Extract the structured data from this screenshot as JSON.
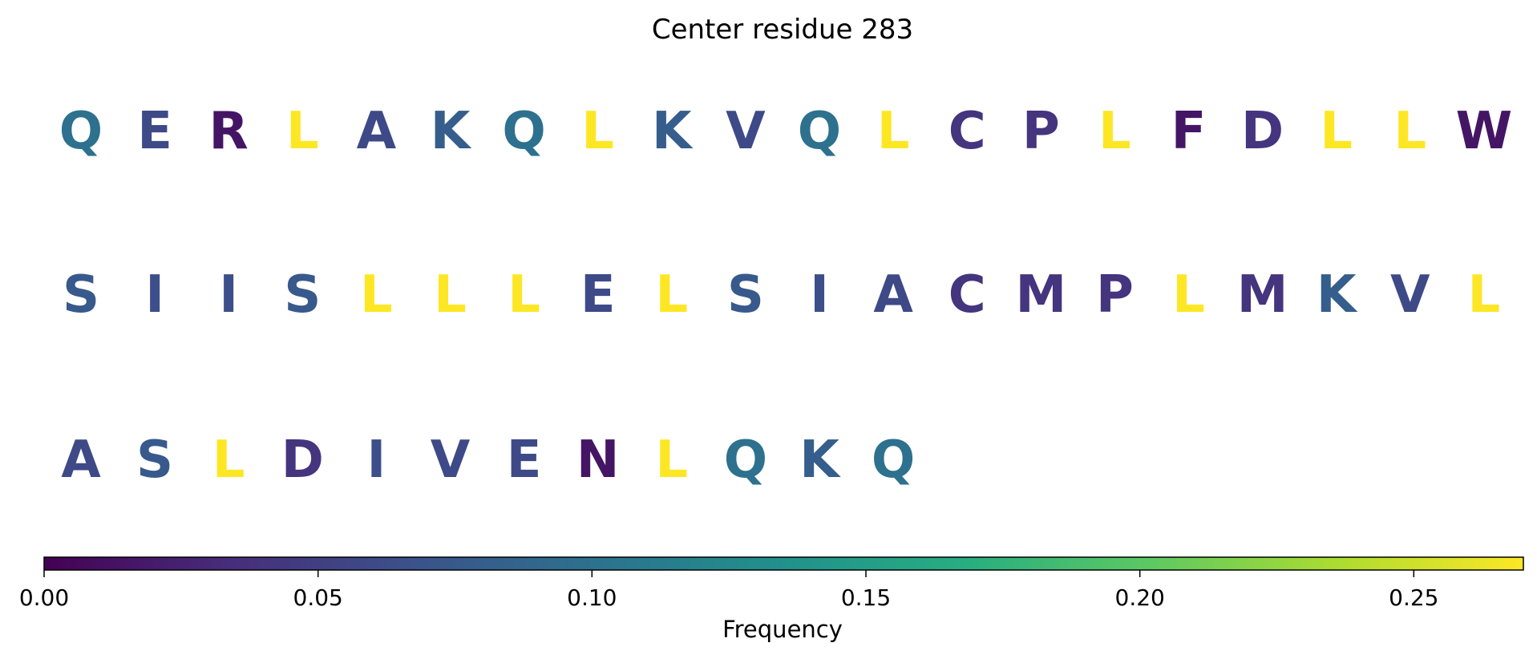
{
  "chart_data": {
    "type": "heatmap",
    "title": "Center residue 283",
    "residues": [
      {
        "letter": "Q",
        "frequency": 0.1
      },
      {
        "letter": "E",
        "frequency": 0.06
      },
      {
        "letter": "R",
        "frequency": 0.015
      },
      {
        "letter": "L",
        "frequency": 0.27
      },
      {
        "letter": "A",
        "frequency": 0.06
      },
      {
        "letter": "K",
        "frequency": 0.08
      },
      {
        "letter": "Q",
        "frequency": 0.1
      },
      {
        "letter": "L",
        "frequency": 0.27
      },
      {
        "letter": "K",
        "frequency": 0.08
      },
      {
        "letter": "V",
        "frequency": 0.06
      },
      {
        "letter": "Q",
        "frequency": 0.1
      },
      {
        "letter": "L",
        "frequency": 0.27
      },
      {
        "letter": "C",
        "frequency": 0.04
      },
      {
        "letter": "P",
        "frequency": 0.04
      },
      {
        "letter": "L",
        "frequency": 0.27
      },
      {
        "letter": "F",
        "frequency": 0.015
      },
      {
        "letter": "D",
        "frequency": 0.04
      },
      {
        "letter": "L",
        "frequency": 0.27
      },
      {
        "letter": "L",
        "frequency": 0.27
      },
      {
        "letter": "W",
        "frequency": 0.015
      },
      {
        "letter": "S",
        "frequency": 0.075
      },
      {
        "letter": "I",
        "frequency": 0.065
      },
      {
        "letter": "I",
        "frequency": 0.065
      },
      {
        "letter": "S",
        "frequency": 0.075
      },
      {
        "letter": "L",
        "frequency": 0.27
      },
      {
        "letter": "L",
        "frequency": 0.27
      },
      {
        "letter": "L",
        "frequency": 0.27
      },
      {
        "letter": "E",
        "frequency": 0.06
      },
      {
        "letter": "L",
        "frequency": 0.27
      },
      {
        "letter": "S",
        "frequency": 0.075
      },
      {
        "letter": "I",
        "frequency": 0.065
      },
      {
        "letter": "A",
        "frequency": 0.06
      },
      {
        "letter": "C",
        "frequency": 0.04
      },
      {
        "letter": "M",
        "frequency": 0.04
      },
      {
        "letter": "P",
        "frequency": 0.04
      },
      {
        "letter": "L",
        "frequency": 0.27
      },
      {
        "letter": "M",
        "frequency": 0.04
      },
      {
        "letter": "K",
        "frequency": 0.08
      },
      {
        "letter": "V",
        "frequency": 0.06
      },
      {
        "letter": "L",
        "frequency": 0.27
      },
      {
        "letter": "A",
        "frequency": 0.06
      },
      {
        "letter": "S",
        "frequency": 0.075
      },
      {
        "letter": "L",
        "frequency": 0.27
      },
      {
        "letter": "D",
        "frequency": 0.04
      },
      {
        "letter": "I",
        "frequency": 0.065
      },
      {
        "letter": "V",
        "frequency": 0.06
      },
      {
        "letter": "E",
        "frequency": 0.06
      },
      {
        "letter": "N",
        "frequency": 0.015
      },
      {
        "letter": "L",
        "frequency": 0.27
      },
      {
        "letter": "Q",
        "frequency": 0.1
      },
      {
        "letter": "K",
        "frequency": 0.08
      },
      {
        "letter": "Q",
        "frequency": 0.1
      }
    ],
    "residues_per_row": 20,
    "colormap": "viridis",
    "colorbar": {
      "label": "Frequency",
      "range": [
        0,
        0.27
      ],
      "ticks": [
        0.0,
        0.05,
        0.1,
        0.15,
        0.2,
        0.25
      ],
      "tick_labels": [
        "0.00",
        "0.05",
        "0.10",
        "0.15",
        "0.20",
        "0.25"
      ],
      "orientation": "horizontal",
      "placement": "bottom"
    },
    "grid": false
  }
}
